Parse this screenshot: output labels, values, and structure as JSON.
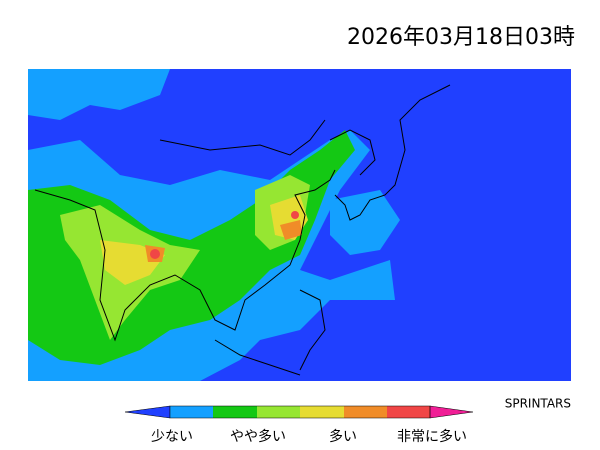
{
  "header": {
    "title": "2026年03月18日03時"
  },
  "credit": "SPRINTARS",
  "legend": {
    "labels": [
      "少ない",
      "やや多い",
      "多い",
      "非常に多い"
    ]
  }
}
